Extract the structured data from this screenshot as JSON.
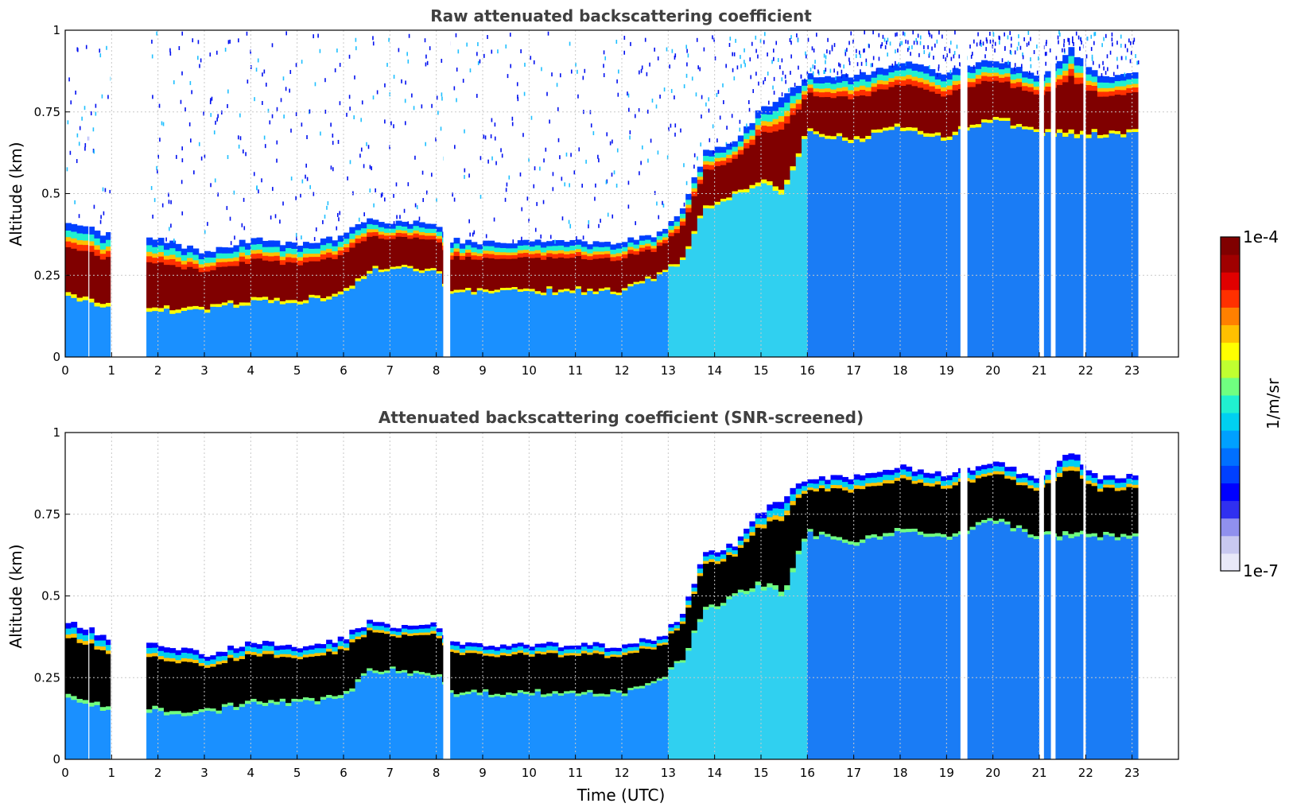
{
  "chart_data": [
    {
      "type": "heatmap",
      "title": "Raw attenuated backscattering coefficient",
      "xlabel": "",
      "ylabel": "Altitude (km)",
      "xlim": [
        0,
        24
      ],
      "ylim": [
        0,
        1
      ],
      "x_ticks": [
        "0",
        "1",
        "2",
        "3",
        "4",
        "5",
        "6",
        "7",
        "8",
        "9",
        "10",
        "11",
        "12",
        "13",
        "14",
        "15",
        "16",
        "17",
        "18",
        "19",
        "20",
        "21",
        "22",
        "23"
      ],
      "y_ticks": [
        "0",
        "0.25",
        "0.5",
        "0.75",
        "1"
      ],
      "grid": true,
      "layer_top_km": [
        {
          "t": 0.1,
          "z": 0.42
        },
        {
          "t": 0.5,
          "z": 0.4
        },
        {
          "t": 1.0,
          "z": 0.37
        },
        {
          "t": 1.7,
          "z": 0.37
        },
        {
          "t": 2.5,
          "z": 0.34
        },
        {
          "t": 3.0,
          "z": 0.32
        },
        {
          "t": 4.0,
          "z": 0.36
        },
        {
          "t": 5.0,
          "z": 0.34
        },
        {
          "t": 6.0,
          "z": 0.37
        },
        {
          "t": 6.6,
          "z": 0.43
        },
        {
          "t": 7.0,
          "z": 0.41
        },
        {
          "t": 8.0,
          "z": 0.41
        },
        {
          "t": 8.3,
          "z": 0.36
        },
        {
          "t": 9.0,
          "z": 0.35
        },
        {
          "t": 10.0,
          "z": 0.35
        },
        {
          "t": 11.0,
          "z": 0.35
        },
        {
          "t": 12.0,
          "z": 0.35
        },
        {
          "t": 12.9,
          "z": 0.38
        },
        {
          "t": 13.3,
          "z": 0.45
        },
        {
          "t": 13.8,
          "z": 0.63
        },
        {
          "t": 14.5,
          "z": 0.66
        },
        {
          "t": 15.0,
          "z": 0.76
        },
        {
          "t": 15.5,
          "z": 0.8
        },
        {
          "t": 16.0,
          "z": 0.86
        },
        {
          "t": 17.0,
          "z": 0.86
        },
        {
          "t": 18.0,
          "z": 0.9
        },
        {
          "t": 19.0,
          "z": 0.87
        },
        {
          "t": 20.0,
          "z": 0.91
        },
        {
          "t": 21.0,
          "z": 0.86
        },
        {
          "t": 21.7,
          "z": 0.94
        },
        {
          "t": 22.3,
          "z": 0.86
        },
        {
          "t": 23.1,
          "z": 0.87
        }
      ],
      "layer_base_km": [
        {
          "t": 0.1,
          "z": 0.18
        },
        {
          "t": 0.5,
          "z": 0.17
        },
        {
          "t": 1.0,
          "z": 0.15
        },
        {
          "t": 1.7,
          "z": 0.15
        },
        {
          "t": 2.5,
          "z": 0.14
        },
        {
          "t": 3.0,
          "z": 0.14
        },
        {
          "t": 4.0,
          "z": 0.17
        },
        {
          "t": 5.0,
          "z": 0.17
        },
        {
          "t": 6.0,
          "z": 0.19
        },
        {
          "t": 6.6,
          "z": 0.27
        },
        {
          "t": 7.0,
          "z": 0.27
        },
        {
          "t": 8.0,
          "z": 0.26
        },
        {
          "t": 8.3,
          "z": 0.2
        },
        {
          "t": 9.0,
          "z": 0.2
        },
        {
          "t": 10.0,
          "z": 0.2
        },
        {
          "t": 11.0,
          "z": 0.2
        },
        {
          "t": 12.0,
          "z": 0.2
        },
        {
          "t": 12.9,
          "z": 0.25
        },
        {
          "t": 13.3,
          "z": 0.3
        },
        {
          "t": 13.8,
          "z": 0.45
        },
        {
          "t": 14.5,
          "z": 0.5
        },
        {
          "t": 15.0,
          "z": 0.53
        },
        {
          "t": 15.5,
          "z": 0.5
        },
        {
          "t": 16.0,
          "z": 0.69
        },
        {
          "t": 17.0,
          "z": 0.66
        },
        {
          "t": 18.0,
          "z": 0.7
        },
        {
          "t": 19.0,
          "z": 0.67
        },
        {
          "t": 20.0,
          "z": 0.73
        },
        {
          "t": 21.0,
          "z": 0.68
        },
        {
          "t": 21.7,
          "z": 0.68
        },
        {
          "t": 22.3,
          "z": 0.68
        },
        {
          "t": 23.1,
          "z": 0.68
        }
      ],
      "data_gaps_hours": [
        [
          1.0,
          1.65
        ]
      ]
    },
    {
      "type": "heatmap",
      "title": "Attenuated backscattering coefficient (SNR-screened)",
      "xlabel": "Time (UTC)",
      "ylabel": "Altitude (km)",
      "xlim": [
        0,
        24
      ],
      "ylim": [
        0,
        1
      ],
      "x_ticks": [
        "0",
        "1",
        "2",
        "3",
        "4",
        "5",
        "6",
        "7",
        "8",
        "9",
        "10",
        "11",
        "12",
        "13",
        "14",
        "15",
        "16",
        "17",
        "18",
        "19",
        "20",
        "21",
        "22",
        "23"
      ],
      "y_ticks": [
        "0",
        "0.25",
        "0.5",
        "0.75",
        "1"
      ],
      "grid": true,
      "data_gaps_hours": [
        [
          1.0,
          1.65
        ]
      ]
    }
  ],
  "colorbar": {
    "max_label": "1e-4",
    "min_label": "1e-7",
    "unit_label": "1/m/sr",
    "colors": [
      "#e8e8f8",
      "#c8c8f0",
      "#9090ee",
      "#3030f0",
      "#0000ff",
      "#0040ff",
      "#0070ff",
      "#00a0ff",
      "#00d0f0",
      "#20f0d0",
      "#70ff80",
      "#c0ff30",
      "#ffff00",
      "#ffc000",
      "#ff8000",
      "#ff3000",
      "#e00000",
      "#a00000",
      "#800000"
    ]
  },
  "figure": {
    "background": "#ffffff",
    "text_color": "#404040",
    "saturated_color_screened": "#000000"
  }
}
